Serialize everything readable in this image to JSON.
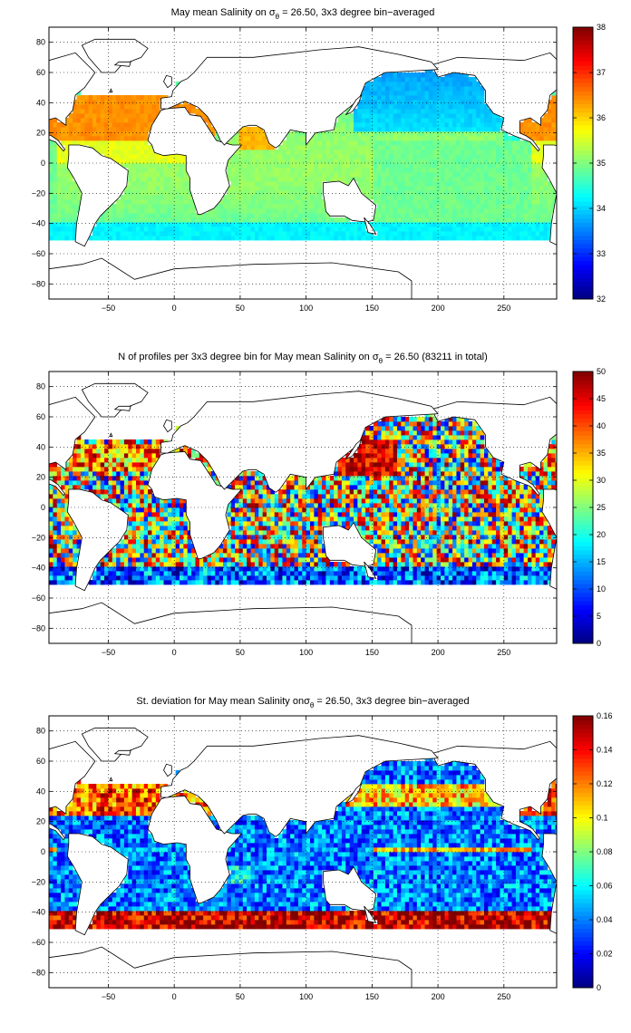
{
  "chart_data": [
    {
      "type": "heatmap",
      "title_parts": [
        "May mean Salinity on ",
        "σ",
        "θ",
        " = 26.50, 3x3 degree bin−averaged"
      ],
      "xlim": [
        -95,
        290
      ],
      "ylim": [
        -90,
        90
      ],
      "xticks": [
        -50,
        0,
        50,
        100,
        150,
        200,
        250
      ],
      "yticks": [
        -80,
        -60,
        -40,
        -20,
        0,
        20,
        40,
        60,
        80
      ],
      "colorbar": {
        "min": 32,
        "max": 38,
        "ticks": [
          32,
          33,
          34,
          35,
          36,
          37,
          38
        ],
        "colormap": "jet"
      },
      "grid": true,
      "field": "salinity"
    },
    {
      "type": "heatmap",
      "title_parts": [
        "N of profiles per 3x3 degree bin for May mean Salinity on ",
        "σ",
        "θ",
        " = 26.50 (83211 in total)"
      ],
      "xlim": [
        -95,
        290
      ],
      "ylim": [
        -90,
        90
      ],
      "xticks": [
        -50,
        0,
        50,
        100,
        150,
        200,
        250
      ],
      "yticks": [
        -80,
        -60,
        -40,
        -20,
        0,
        20,
        40,
        60,
        80
      ],
      "colorbar": {
        "min": 0,
        "max": 50,
        "ticks": [
          0,
          5,
          10,
          15,
          20,
          25,
          30,
          35,
          40,
          45,
          50
        ],
        "colormap": "jet"
      },
      "grid": true,
      "field": "count"
    },
    {
      "type": "heatmap",
      "title_parts": [
        "St. deviation for May mean Salinity on",
        "σ",
        "θ",
        " = 26.50, 3x3 degree bin−averaged"
      ],
      "xlim": [
        -95,
        290
      ],
      "ylim": [
        -90,
        90
      ],
      "xticks": [
        -50,
        0,
        50,
        100,
        150,
        200,
        250
      ],
      "yticks": [
        -80,
        -60,
        -40,
        -20,
        0,
        20,
        40,
        60,
        80
      ],
      "colorbar": {
        "min": 0,
        "max": 0.16,
        "ticks": [
          0,
          0.02,
          0.04,
          0.06,
          0.08,
          0.1,
          0.12,
          0.14,
          0.16
        ],
        "colormap": "jet"
      },
      "grid": true,
      "field": "std"
    }
  ]
}
